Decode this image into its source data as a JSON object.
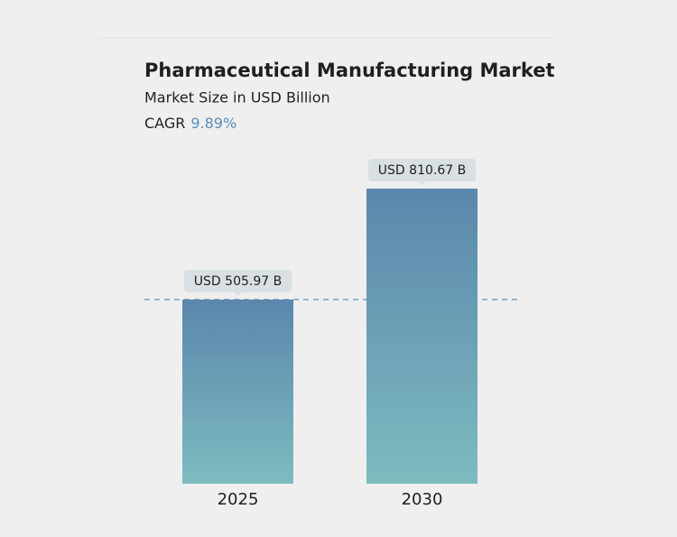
{
  "chart_data": {
    "type": "bar",
    "title": "Pharmaceutical Manufacturing Market",
    "subtitle": "Market Size in USD Billion",
    "cagr_label": "CAGR",
    "cagr": "9.89%",
    "categories": [
      "2025",
      "2030"
    ],
    "values": [
      505.97,
      810.67
    ],
    "value_labels": [
      "USD 505.97 B",
      "USD 810.67 B"
    ],
    "gradient": [
      "#5a87ac",
      "#7dbbc0"
    ],
    "reference_line": true
  }
}
